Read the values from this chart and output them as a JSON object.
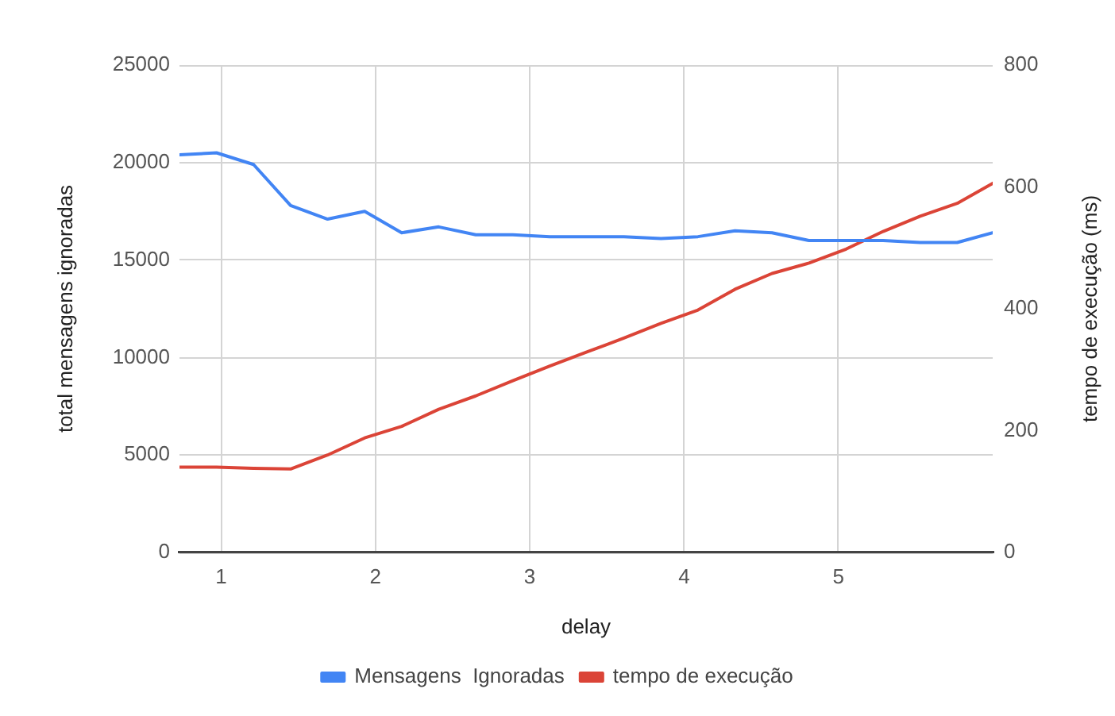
{
  "chart_data": {
    "type": "line",
    "xlabel": "delay",
    "ylabel": "total mensagens ignoradas",
    "y2label": "tempo de execução (ms)",
    "x": [
      0.73,
      0.97,
      1.21,
      1.45,
      1.69,
      1.93,
      2.17,
      2.41,
      2.65,
      2.89,
      3.13,
      3.37,
      3.61,
      3.85,
      4.09,
      4.33,
      4.57,
      4.81,
      5.05,
      5.29,
      5.53,
      5.77,
      6.0
    ],
    "series": [
      {
        "name": "Mensagens  Ignoradas",
        "color": "#4285f4",
        "values": [
          20400,
          20500,
          19900,
          17800,
          17100,
          17500,
          16400,
          16700,
          16300,
          16300,
          16200,
          16200,
          16200,
          16100,
          16200,
          16500,
          16400,
          16000,
          16000,
          16000,
          15900,
          15900,
          16400
        ]
      },
      {
        "name": "tempo de execução",
        "color": "#db4437",
        "axis": "y2",
        "values": [
          140,
          140,
          138,
          137,
          160,
          188,
          207,
          235,
          257,
          282,
          306,
          329,
          352,
          376,
          398,
          432,
          458,
          475,
          498,
          527,
          552,
          573,
          606
        ]
      }
    ],
    "xlim": [
      0.73,
      6.0
    ],
    "xticks": [
      1,
      2,
      3,
      4,
      5
    ],
    "ylim": [
      0,
      25000
    ],
    "yticks": [
      0,
      5000,
      10000,
      15000,
      20000,
      25000
    ],
    "y2lim": [
      0,
      800
    ],
    "y2ticks": [
      0,
      200,
      400,
      600,
      800
    ],
    "grid": true,
    "legend": "bottom"
  }
}
